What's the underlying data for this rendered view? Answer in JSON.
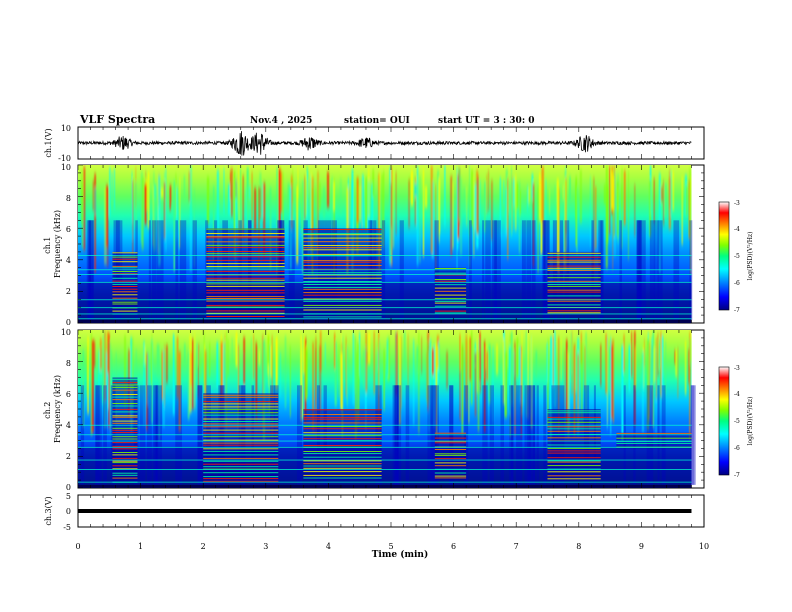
{
  "header": {
    "title": "VLF Spectra",
    "date": "Nov.4 , 2025",
    "station": "station= OUI",
    "start": "start  UT =   3 : 30: 0"
  },
  "chart_data": [
    {
      "type": "line",
      "name": "ch1-waveform",
      "ylabel": "ch.1(V)",
      "ylim": [
        -10,
        10
      ],
      "y_ticks": [
        "10",
        "-10"
      ],
      "x_range_min": [
        0,
        10
      ],
      "baseline": 0,
      "bursts_min": [
        {
          "t": 0.72,
          "amp": 4
        },
        {
          "t": 2.6,
          "amp": 8
        },
        {
          "t": 2.9,
          "amp": 7
        },
        {
          "t": 3.7,
          "amp": 4
        },
        {
          "t": 4.6,
          "amp": 3
        },
        {
          "t": 8.1,
          "amp": 5
        }
      ]
    },
    {
      "type": "heatmap",
      "name": "ch1-spectrogram",
      "ylabel": "ch.1\nFrequency (kHz)",
      "ylim": [
        0,
        10
      ],
      "y_ticks": [
        "0",
        "2",
        "4",
        "6",
        "8",
        "10"
      ],
      "x_range_min": [
        0,
        9.8
      ],
      "colorbar": {
        "label": "log(PSD)(V²/Hz)",
        "range": [
          -7,
          -3
        ],
        "ticks": [
          "-3",
          "-4",
          "-5",
          "-6",
          "-7"
        ],
        "colors": [
          "#000080",
          "#0000ff",
          "#0080ff",
          "#00ffff",
          "#00ff80",
          "#80ff00",
          "#ffff00",
          "#ff8000",
          "#ff0000",
          "#ffffff"
        ]
      },
      "bands_min_khz": [
        {
          "t": [
            0.55,
            0.95
          ],
          "f": [
            0.5,
            4.5
          ]
        },
        {
          "t": [
            2.05,
            3.3
          ],
          "f": [
            0.3,
            6.0
          ]
        },
        {
          "t": [
            3.6,
            4.85
          ],
          "f": [
            0.3,
            6.0
          ]
        },
        {
          "t": [
            5.7,
            6.2
          ],
          "f": [
            0.5,
            3.5
          ]
        },
        {
          "t": [
            7.5,
            8.35
          ],
          "f": [
            0.5,
            4.5
          ]
        }
      ],
      "tone_lines_khz": [
        0.3,
        0.6,
        1.0,
        1.5,
        2.6,
        3.1,
        3.4,
        4.3
      ]
    },
    {
      "type": "heatmap",
      "name": "ch2-spectrogram",
      "ylabel": "ch.2\nFrequency (kHz)",
      "ylim": [
        0,
        10
      ],
      "y_ticks": [
        "0",
        "2",
        "4",
        "6",
        "8",
        "10"
      ],
      "x_range_min": [
        0,
        9.8
      ],
      "colorbar": {
        "label": "log(PSD)(V²/Hz)",
        "range": [
          -7,
          -3
        ],
        "ticks": [
          "-3",
          "-4",
          "-5",
          "-6",
          "-7"
        ],
        "colors": [
          "#000080",
          "#0000ff",
          "#0080ff",
          "#00ffff",
          "#00ff80",
          "#80ff00",
          "#ffff00",
          "#ff8000",
          "#ff0000",
          "#ffffff"
        ]
      },
      "bands_min_khz": [
        {
          "t": [
            0.55,
            0.95
          ],
          "f": [
            0.3,
            7.0
          ]
        },
        {
          "t": [
            2.0,
            3.2
          ],
          "f": [
            0.3,
            6.0
          ]
        },
        {
          "t": [
            3.6,
            4.85
          ],
          "f": [
            0.5,
            5.0
          ]
        },
        {
          "t": [
            5.7,
            6.2
          ],
          "f": [
            0.5,
            3.5
          ]
        },
        {
          "t": [
            7.5,
            8.35
          ],
          "f": [
            0.5,
            5.0
          ]
        },
        {
          "t": [
            8.6,
            9.8
          ],
          "f": [
            2.5,
            3.5
          ]
        }
      ],
      "tone_lines_khz": [
        0.4,
        1.2,
        1.8,
        2.6,
        3.0,
        3.4,
        4.0
      ]
    },
    {
      "type": "line",
      "name": "ch3-waveform",
      "ylabel": "ch.3(V)",
      "ylim": [
        -5,
        5
      ],
      "y_ticks": [
        "5",
        "0",
        "-5"
      ],
      "x_range_min": [
        0,
        9.8
      ],
      "level_v": 0
    }
  ],
  "x_axis": {
    "label": "Time  (min)",
    "range": [
      0,
      10
    ],
    "ticks": [
      "0",
      "1",
      "2",
      "3",
      "4",
      "5",
      "6",
      "7",
      "8",
      "9",
      "10"
    ]
  }
}
